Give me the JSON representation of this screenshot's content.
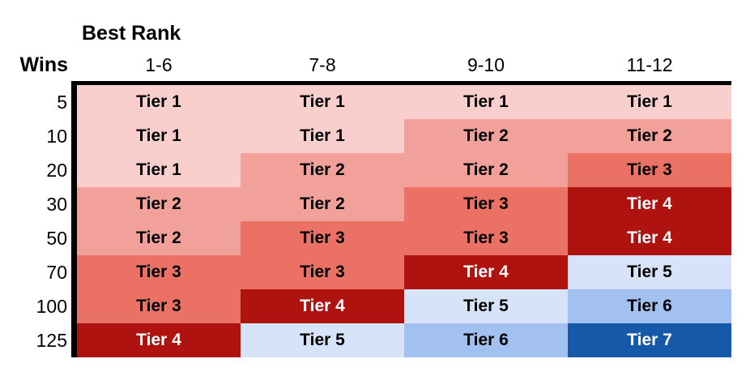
{
  "header": {
    "best_rank": "Best Rank",
    "wins": "Wins"
  },
  "columns": [
    "1-6",
    "7-8",
    "9-10",
    "11-12"
  ],
  "rows": [
    {
      "wins": "5",
      "cells": [
        "Tier 1",
        "Tier 1",
        "Tier 1",
        "Tier 1"
      ],
      "tiers": [
        1,
        1,
        1,
        1
      ]
    },
    {
      "wins": "10",
      "cells": [
        "Tier 1",
        "Tier 1",
        "Tier 2",
        "Tier 2"
      ],
      "tiers": [
        1,
        1,
        2,
        2
      ]
    },
    {
      "wins": "20",
      "cells": [
        "Tier 1",
        "Tier 2",
        "Tier 2",
        "Tier 3"
      ],
      "tiers": [
        1,
        2,
        2,
        3
      ]
    },
    {
      "wins": "30",
      "cells": [
        "Tier 2",
        "Tier 2",
        "Tier 3",
        "Tier 4"
      ],
      "tiers": [
        2,
        2,
        3,
        4
      ]
    },
    {
      "wins": "50",
      "cells": [
        "Tier 2",
        "Tier 3",
        "Tier 3",
        "Tier 4"
      ],
      "tiers": [
        2,
        3,
        3,
        4
      ]
    },
    {
      "wins": "70",
      "cells": [
        "Tier 3",
        "Tier 3",
        "Tier 4",
        "Tier 5"
      ],
      "tiers": [
        3,
        3,
        4,
        5
      ]
    },
    {
      "wins": "100",
      "cells": [
        "Tier 3",
        "Tier 4",
        "Tier 5",
        "Tier 6"
      ],
      "tiers": [
        3,
        4,
        5,
        6
      ]
    },
    {
      "wins": "125",
      "cells": [
        "Tier 4",
        "Tier 5",
        "Tier 6",
        "Tier 7"
      ],
      "tiers": [
        4,
        5,
        6,
        7
      ]
    }
  ],
  "tier_styles": {
    "1": {
      "bg": "#F8CFCC",
      "fg": "#000000"
    },
    "2": {
      "bg": "#F2A19A",
      "fg": "#000000"
    },
    "3": {
      "bg": "#EB7164",
      "fg": "#000000"
    },
    "4": {
      "bg": "#AF1310",
      "fg": "#FFFFFF"
    },
    "5": {
      "bg": "#D6E3F8",
      "fg": "#000000"
    },
    "6": {
      "bg": "#A3C1F0",
      "fg": "#000000"
    },
    "7": {
      "bg": "#1559A8",
      "fg": "#FFFFFF"
    }
  },
  "border_color": "#000000",
  "chart_data": {
    "type": "heatmap",
    "title": "Best Rank",
    "xlabel": "Best Rank",
    "ylabel": "Wins",
    "columns": [
      "1-6",
      "7-8",
      "9-10",
      "11-12"
    ],
    "rows": [
      "5",
      "10",
      "20",
      "30",
      "50",
      "70",
      "100",
      "125"
    ],
    "values": [
      [
        1,
        1,
        1,
        1
      ],
      [
        1,
        1,
        2,
        2
      ],
      [
        1,
        2,
        2,
        3
      ],
      [
        2,
        2,
        3,
        4
      ],
      [
        2,
        3,
        3,
        4
      ],
      [
        3,
        3,
        4,
        5
      ],
      [
        3,
        4,
        5,
        6
      ],
      [
        4,
        5,
        6,
        7
      ]
    ],
    "value_labels": [
      [
        "Tier 1",
        "Tier 1",
        "Tier 1",
        "Tier 1"
      ],
      [
        "Tier 1",
        "Tier 1",
        "Tier 2",
        "Tier 2"
      ],
      [
        "Tier 1",
        "Tier 2",
        "Tier 2",
        "Tier 3"
      ],
      [
        "Tier 2",
        "Tier 2",
        "Tier 3",
        "Tier 4"
      ],
      [
        "Tier 2",
        "Tier 3",
        "Tier 3",
        "Tier 4"
      ],
      [
        "Tier 3",
        "Tier 3",
        "Tier 4",
        "Tier 5"
      ],
      [
        "Tier 3",
        "Tier 4",
        "Tier 5",
        "Tier 6"
      ],
      [
        "Tier 4",
        "Tier 5",
        "Tier 6",
        "Tier 7"
      ]
    ],
    "legend": "none",
    "grid": false,
    "colorscale": "tiers 1-4 light pink to dark red, tiers 5-7 light blue to dark blue"
  }
}
